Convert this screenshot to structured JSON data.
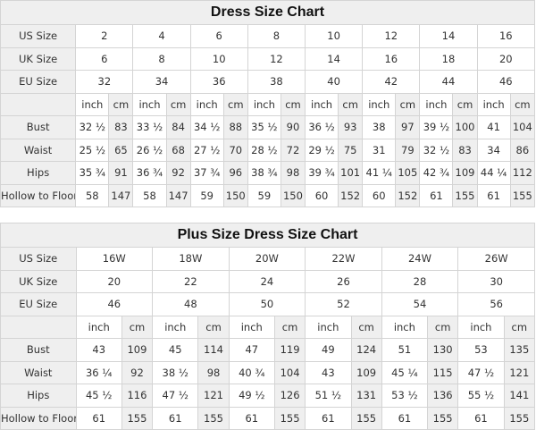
{
  "tables": [
    {
      "title": "Dress Size Chart",
      "sizes": {
        "US Size": [
          "2",
          "4",
          "6",
          "8",
          "10",
          "12",
          "14",
          "16"
        ],
        "UK Size": [
          "6",
          "8",
          "10",
          "12",
          "14",
          "16",
          "18",
          "20"
        ],
        "EU Size": [
          "32",
          "34",
          "36",
          "38",
          "40",
          "42",
          "44",
          "46"
        ]
      },
      "unit_labels": [
        "inch",
        "cm"
      ],
      "measurements": [
        {
          "label": "Bust",
          "values": [
            "32 ½",
            "83",
            "33 ½",
            "84",
            "34 ½",
            "88",
            "35 ½",
            "90",
            "36 ½",
            "93",
            "38",
            "97",
            "39 ½",
            "100",
            "41",
            "104"
          ]
        },
        {
          "label": "Waist",
          "values": [
            "25 ½",
            "65",
            "26 ½",
            "68",
            "27 ½",
            "70",
            "28 ½",
            "72",
            "29 ½",
            "75",
            "31",
            "79",
            "32 ½",
            "83",
            "34",
            "86"
          ]
        },
        {
          "label": "Hips",
          "values": [
            "35 ¾",
            "91",
            "36 ¾",
            "92",
            "37 ¾",
            "96",
            "38 ¾",
            "98",
            "39 ¾",
            "101",
            "41 ¼",
            "105",
            "42 ¾",
            "109",
            "44 ¼",
            "112"
          ]
        },
        {
          "label": "Hollow to Floor",
          "values": [
            "58",
            "147",
            "58",
            "147",
            "59",
            "150",
            "59",
            "150",
            "60",
            "152",
            "60",
            "152",
            "61",
            "155",
            "61",
            "155"
          ]
        }
      ]
    },
    {
      "title": "Plus Size Dress Size Chart",
      "sizes": {
        "US Size": [
          "16W",
          "18W",
          "20W",
          "22W",
          "24W",
          "26W"
        ],
        "UK Size": [
          "20",
          "22",
          "24",
          "26",
          "28",
          "30"
        ],
        "EU Size": [
          "46",
          "48",
          "50",
          "52",
          "54",
          "56"
        ]
      },
      "unit_labels": [
        "inch",
        "cm"
      ],
      "measurements": [
        {
          "label": "Bust",
          "values": [
            "43",
            "109",
            "45",
            "114",
            "47",
            "119",
            "49",
            "124",
            "51",
            "130",
            "53",
            "135"
          ]
        },
        {
          "label": "Waist",
          "values": [
            "36 ¼",
            "92",
            "38 ½",
            "98",
            "40 ¾",
            "104",
            "43",
            "109",
            "45 ¼",
            "115",
            "47 ½",
            "121"
          ]
        },
        {
          "label": "Hips",
          "values": [
            "45 ½",
            "116",
            "47 ½",
            "121",
            "49 ½",
            "126",
            "51 ½",
            "131",
            "53 ½",
            "136",
            "55 ½",
            "141"
          ]
        },
        {
          "label": "Hollow to Floor",
          "values": [
            "61",
            "155",
            "61",
            "155",
            "61",
            "155",
            "61",
            "155",
            "61",
            "155",
            "61",
            "155"
          ]
        }
      ]
    }
  ]
}
